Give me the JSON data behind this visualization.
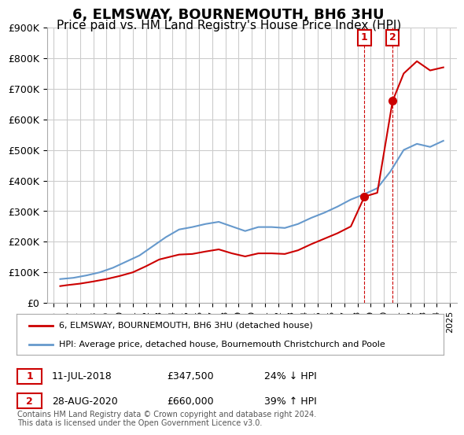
{
  "title": "6, ELMSWAY, BOURNEMOUTH, BH6 3HU",
  "subtitle": "Price paid vs. HM Land Registry's House Price Index (HPI)",
  "title_fontsize": 13,
  "subtitle_fontsize": 11,
  "background_color": "#ffffff",
  "plot_bg_color": "#ffffff",
  "grid_color": "#cccccc",
  "ylim": [
    0,
    900000
  ],
  "yticks": [
    0,
    100000,
    200000,
    300000,
    400000,
    500000,
    600000,
    700000,
    800000,
    900000
  ],
  "ytick_labels": [
    "£0",
    "£100K",
    "£200K",
    "£300K",
    "£400K",
    "£500K",
    "£600K",
    "£700K",
    "£800K",
    "£900K"
  ],
  "xticks": [
    1995,
    1996,
    1997,
    1998,
    1999,
    2000,
    2001,
    2002,
    2003,
    2004,
    2005,
    2006,
    2007,
    2008,
    2009,
    2010,
    2011,
    2012,
    2013,
    2014,
    2015,
    2016,
    2017,
    2018,
    2019,
    2020,
    2021,
    2022,
    2023,
    2024,
    2025
  ],
  "hpi_color": "#6699cc",
  "price_color": "#cc0000",
  "marker_color": "#cc0000",
  "transaction1": {
    "date": "11-JUL-2018",
    "price": 347500,
    "label": "1",
    "year": 2018.53,
    "pct": "24% ↓ HPI"
  },
  "transaction2": {
    "date": "28-AUG-2020",
    "price": 660000,
    "label": "2",
    "year": 2020.66,
    "pct": "39% ↑ HPI"
  },
  "legend_line1": "6, ELMSWAY, BOURNEMOUTH, BH6 3HU (detached house)",
  "legend_line2": "HPI: Average price, detached house, Bournemouth Christchurch and Poole",
  "footnote": "Contains HM Land Registry data © Crown copyright and database right 2024.\nThis data is licensed under the Open Government Licence v3.0.",
  "hpi_data": {
    "years": [
      1995.5,
      1996.5,
      1997.5,
      1998.5,
      1999.5,
      2000.5,
      2001.5,
      2002.5,
      2003.5,
      2004.5,
      2005.5,
      2006.5,
      2007.5,
      2008.5,
      2009.5,
      2010.5,
      2011.5,
      2012.5,
      2013.5,
      2014.5,
      2015.5,
      2016.5,
      2017.5,
      2018.5,
      2019.5,
      2020.5,
      2021.5,
      2022.5,
      2023.5,
      2024.5
    ],
    "values": [
      78000,
      82000,
      90000,
      100000,
      115000,
      135000,
      155000,
      185000,
      215000,
      240000,
      248000,
      258000,
      265000,
      250000,
      235000,
      248000,
      248000,
      245000,
      258000,
      278000,
      295000,
      315000,
      338000,
      355000,
      375000,
      430000,
      500000,
      520000,
      510000,
      530000
    ]
  },
  "price_data": {
    "years": [
      1995.5,
      1996.0,
      1997.0,
      1998.0,
      1999.0,
      2000.0,
      2001.0,
      2002.0,
      2003.0,
      2004.5,
      2005.5,
      2006.5,
      2007.5,
      2008.5,
      2009.5,
      2010.5,
      2011.5,
      2012.5,
      2013.5,
      2014.5,
      2015.5,
      2016.5,
      2017.5,
      2018.53,
      2019.5,
      2020.66,
      2021.5,
      2022.5,
      2023.5,
      2024.5
    ],
    "values": [
      55000,
      58000,
      63000,
      70000,
      78000,
      88000,
      100000,
      120000,
      142000,
      158000,
      160000,
      168000,
      175000,
      162000,
      152000,
      162000,
      162000,
      160000,
      172000,
      192000,
      210000,
      228000,
      250000,
      347500,
      360000,
      660000,
      750000,
      790000,
      760000,
      770000
    ]
  }
}
